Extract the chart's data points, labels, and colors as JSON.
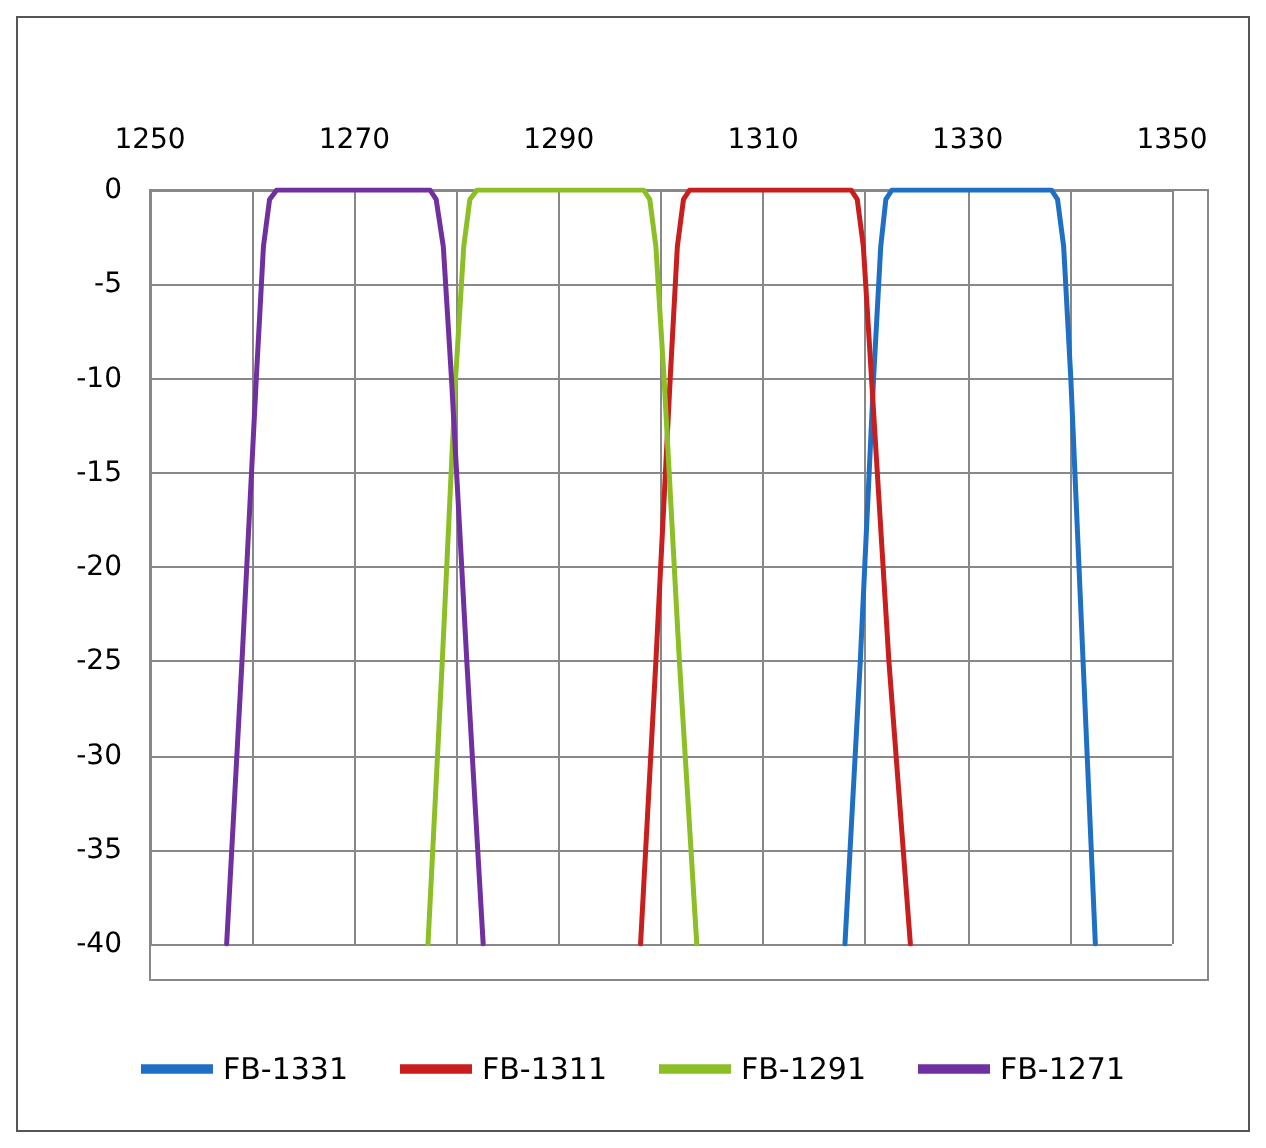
{
  "chart_data": {
    "type": "line",
    "xlim": [
      1250,
      1350
    ],
    "ylim": [
      -40,
      0
    ],
    "xticks": [
      1250,
      {
        "value": 1260,
        "label": null
      },
      1270,
      {
        "value": 1280,
        "label": null
      },
      1290,
      {
        "value": 1300,
        "label": null
      },
      1310,
      {
        "value": 1320,
        "label": null
      },
      1330,
      {
        "value": 1340,
        "label": null
      },
      1350
    ],
    "yticks": [
      -40,
      -35,
      -30,
      -25,
      -20,
      -15,
      -10,
      -5,
      0
    ],
    "grid": true,
    "legend": "bottom",
    "marker": "none",
    "line_style": "solid",
    "series": [
      {
        "name": "FB-1331",
        "color": "#1f6fc5",
        "x": [
          1318,
          1319.5,
          1320.8,
          1321.5,
          1322,
          1322.6,
          1338.2,
          1338.8,
          1339.4,
          1340.1,
          1341.3,
          1342.5
        ],
        "values": [
          -40,
          -25,
          -10,
          -3,
          -0.5,
          0,
          0,
          -0.5,
          -3,
          -10,
          -25,
          -40
        ]
      },
      {
        "name": "FB-1311",
        "color": "#c81e1e",
        "x": [
          1298,
          1299.5,
          1300.9,
          1301.6,
          1302.2,
          1302.8,
          1318.6,
          1319.2,
          1319.8,
          1320.6,
          1322.3,
          1324.4
        ],
        "values": [
          -40,
          -25,
          -10,
          -3,
          -0.5,
          0,
          0,
          -0.5,
          -3,
          -10,
          -25,
          -40
        ]
      },
      {
        "name": "FB-1291",
        "color": "#8cbf26",
        "x": [
          1277.2,
          1278.6,
          1279.9,
          1280.7,
          1281.3,
          1282,
          1298.3,
          1298.9,
          1299.5,
          1300.3,
          1301.8,
          1303.5
        ],
        "values": [
          -40,
          -25,
          -10,
          -3,
          -0.5,
          0,
          0,
          -0.5,
          -3,
          -10,
          -25,
          -40
        ]
      },
      {
        "name": "FB-1271",
        "color": "#7030a0",
        "x": [
          1257.5,
          1259,
          1260.4,
          1261.1,
          1261.7,
          1262.4,
          1277.4,
          1278,
          1278.7,
          1279.5,
          1281,
          1282.6
        ],
        "values": [
          -40,
          -25,
          -10,
          -3,
          -0.5,
          0,
          0,
          -0.5,
          -3,
          -10,
          -25,
          -40
        ]
      }
    ]
  }
}
